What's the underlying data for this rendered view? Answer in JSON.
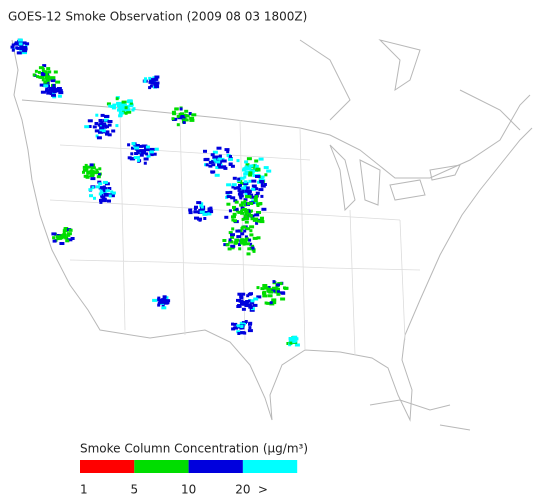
{
  "title": "GOES-12 Smoke Observation (2009 08 03  1800Z)",
  "legend": {
    "title": "Smoke Column Concentration (μg/m³)",
    "bins": [
      {
        "color": "#ff0000"
      },
      {
        "color": "#00dd00"
      },
      {
        "color": "#0000dd"
      },
      {
        "color": "#00ffff"
      }
    ],
    "ticks": [
      "1",
      "5",
      "10",
      "20",
      ">"
    ]
  }
}
